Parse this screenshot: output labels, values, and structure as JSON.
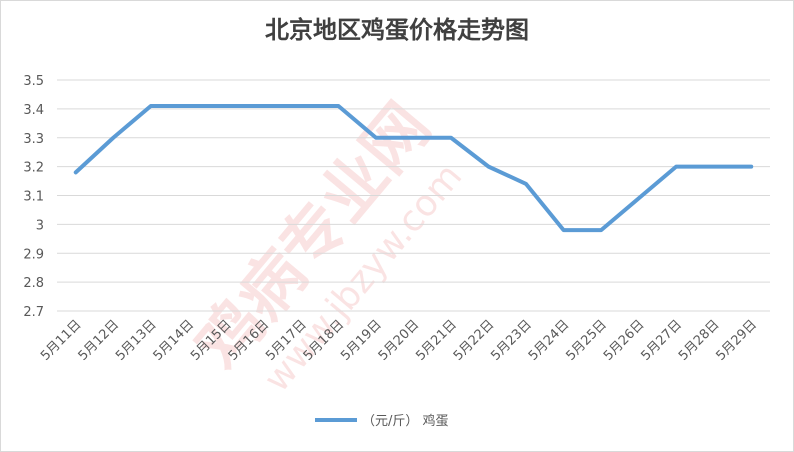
{
  "chart_data": {
    "type": "line",
    "title": "北京地区鸡蛋价格走势图",
    "watermark": [
      "鸡病专业网",
      "www.jbzyw.com"
    ],
    "categories": [
      "5月11日",
      "5月12日",
      "5月13日",
      "5月14日",
      "5月15日",
      "5月16日",
      "5月17日",
      "5月18日",
      "5月19日",
      "5月20日",
      "5月21日",
      "5月22日",
      "5月23日",
      "5月24日",
      "5月25日",
      "5月26日",
      "5月27日",
      "5月28日",
      "5月29日"
    ],
    "series": [
      {
        "name": "（元/斤） 鸡蛋",
        "color": "#5b9bd5",
        "values": [
          3.18,
          3.3,
          3.41,
          3.41,
          3.41,
          3.41,
          3.41,
          3.41,
          3.3,
          3.3,
          3.3,
          3.2,
          3.14,
          2.98,
          2.98,
          3.09,
          3.2,
          3.2,
          3.2
        ]
      }
    ],
    "ylim": [
      2.7,
      3.5
    ],
    "yticks": [
      2.7,
      2.8,
      2.9,
      3,
      3.1,
      3.2,
      3.3,
      3.4,
      3.5
    ],
    "grid": true,
    "legend": "bottom"
  }
}
